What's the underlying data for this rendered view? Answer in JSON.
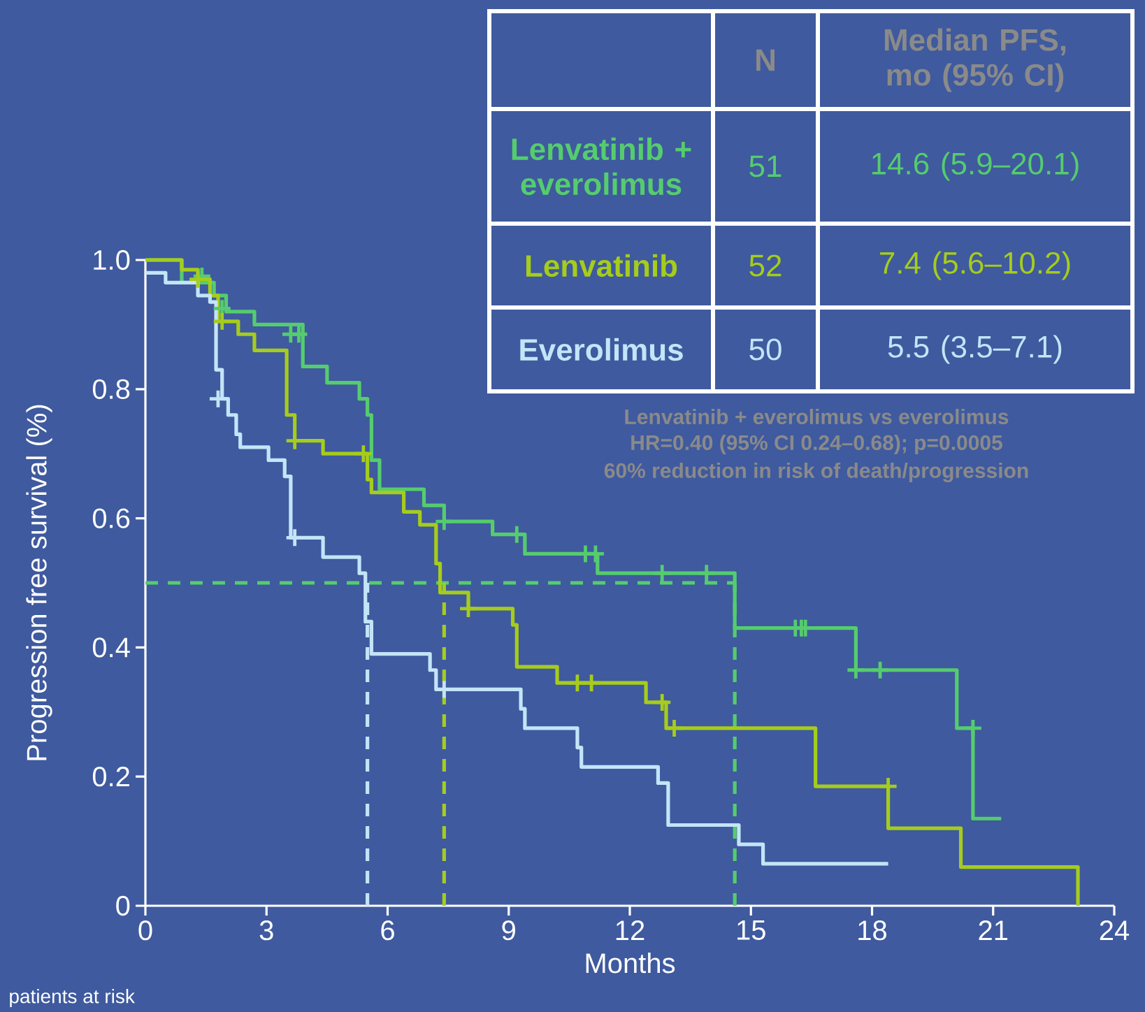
{
  "chart_data": {
    "type": "step",
    "xlabel": "Months",
    "ylabel": "Progression free survival (%)",
    "xlim": [
      0,
      24
    ],
    "ylim": [
      0,
      1.0
    ],
    "xticks": [
      0,
      3,
      6,
      9,
      12,
      15,
      18,
      21,
      24
    ],
    "yticks": [
      0,
      0.2,
      0.4,
      0.6,
      0.8,
      {
        "value": 1.0,
        "label": "1.0"
      }
    ],
    "legend": "top right",
    "annotations": [
      "N",
      "Median PFS, mo (95% CI)",
      "51",
      "14.6 (5.9–20.1)",
      "52",
      "7.4 (5.6–10.2)",
      "50",
      "5.5 (3.5–7.1)",
      "Lenvatinib + everolimus vs everolimus",
      "HR=0.40 (95% CI 0.24–0.68); p=0.0005",
      "60% reduction in risk of death/progression",
      "patients at risk"
    ],
    "series": [
      {
        "type": "line",
        "color": "#55cc6e",
        "line_style": "dashed",
        "x": [
          0,
          14.6
        ],
        "values": [
          0.5,
          0.5
        ]
      },
      {
        "type": "line",
        "color": "#c4e4f8",
        "line_style": "dashed",
        "x": [
          5.5,
          5.5
        ],
        "values": [
          0,
          0.5
        ]
      },
      {
        "type": "line",
        "color": "#a6cc1c",
        "line_style": "dashed",
        "x": [
          7.4,
          7.4
        ],
        "values": [
          0,
          0.5
        ]
      },
      {
        "type": "line",
        "color": "#55cc6e",
        "line_style": "dashed",
        "x": [
          14.6,
          14.6
        ],
        "values": [
          0,
          0.5
        ]
      },
      {
        "name": "Lenvatinib + everolimus",
        "color": "#55cc6e",
        "line_style": "solid",
        "x": [
          0,
          0.9,
          1.7,
          2.0,
          2.7,
          3.9,
          4.5,
          5.3,
          5.5,
          5.6,
          5.8,
          6.9,
          7.4,
          8.6,
          9.4,
          11.2,
          14.6,
          17.6,
          20.1,
          20.5,
          21.2
        ],
        "values": [
          1.0,
          0.965,
          0.945,
          0.92,
          0.9,
          0.835,
          0.81,
          0.785,
          0.76,
          0.69,
          0.645,
          0.62,
          0.595,
          0.575,
          0.545,
          0.515,
          0.43,
          0.365,
          0.275,
          0.135,
          0.135
        ]
      },
      {
        "name": "Lenvatinib",
        "color": "#a6cc1c",
        "line_style": "solid",
        "x": [
          0,
          0.9,
          1.3,
          1.6,
          1.8,
          2.3,
          2.7,
          3.5,
          3.7,
          4.4,
          5.5,
          5.6,
          6.4,
          6.8,
          7.2,
          7.3,
          8.0,
          9.1,
          9.2,
          10.2,
          12.4,
          12.9,
          16.6,
          18.4,
          20.2,
          23.1
        ],
        "values": [
          1.0,
          0.985,
          0.97,
          0.945,
          0.905,
          0.885,
          0.86,
          0.76,
          0.72,
          0.7,
          0.66,
          0.64,
          0.61,
          0.59,
          0.53,
          0.485,
          0.46,
          0.435,
          0.37,
          0.345,
          0.315,
          0.275,
          0.185,
          0.12,
          0.06,
          0
        ]
      },
      {
        "name": "Everolimus",
        "color": "#c4e4f8",
        "line_style": "solid",
        "x": [
          0,
          0.5,
          1.3,
          1.6,
          1.75,
          1.9,
          2.05,
          2.25,
          2.35,
          3.05,
          3.45,
          3.6,
          4.4,
          5.3,
          5.45,
          5.6,
          7.05,
          7.2,
          9.3,
          9.4,
          10.7,
          10.8,
          12.7,
          12.95,
          14.7,
          15.3,
          18.4
        ],
        "values": [
          0.98,
          0.965,
          0.945,
          0.935,
          0.83,
          0.785,
          0.76,
          0.73,
          0.71,
          0.69,
          0.665,
          0.57,
          0.54,
          0.515,
          0.44,
          0.39,
          0.365,
          0.335,
          0.305,
          0.275,
          0.245,
          0.215,
          0.19,
          0.125,
          0.095,
          0.065,
          0.065
        ]
      },
      {
        "type": "scatter",
        "color": "#55cc6e",
        "marker": "cross",
        "x": [
          1.4,
          1.9,
          3.6,
          3.8,
          7.4,
          9.2,
          10.9,
          11.15,
          12.8,
          13.9,
          16.1,
          16.25,
          16.35,
          17.6,
          18.2,
          20.5
        ],
        "values": [
          0.975,
          0.925,
          0.885,
          0.885,
          0.595,
          0.575,
          0.545,
          0.545,
          0.515,
          0.515,
          0.43,
          0.43,
          0.43,
          0.365,
          0.365,
          0.275
        ]
      },
      {
        "type": "scatter",
        "color": "#a6cc1c",
        "marker": "cross",
        "x": [
          1.3,
          1.9,
          3.7,
          5.4,
          8.0,
          10.7,
          11.05,
          12.8,
          13.1,
          18.4
        ],
        "values": [
          0.97,
          0.905,
          0.72,
          0.7,
          0.46,
          0.345,
          0.345,
          0.315,
          0.275,
          0.185
        ]
      },
      {
        "type": "scatter",
        "color": "#c4e4f8",
        "marker": "cross",
        "x": [
          1.8,
          3.7,
          7.4
        ],
        "values": [
          0.785,
          0.57,
          0.335
        ]
      }
    ]
  }
}
